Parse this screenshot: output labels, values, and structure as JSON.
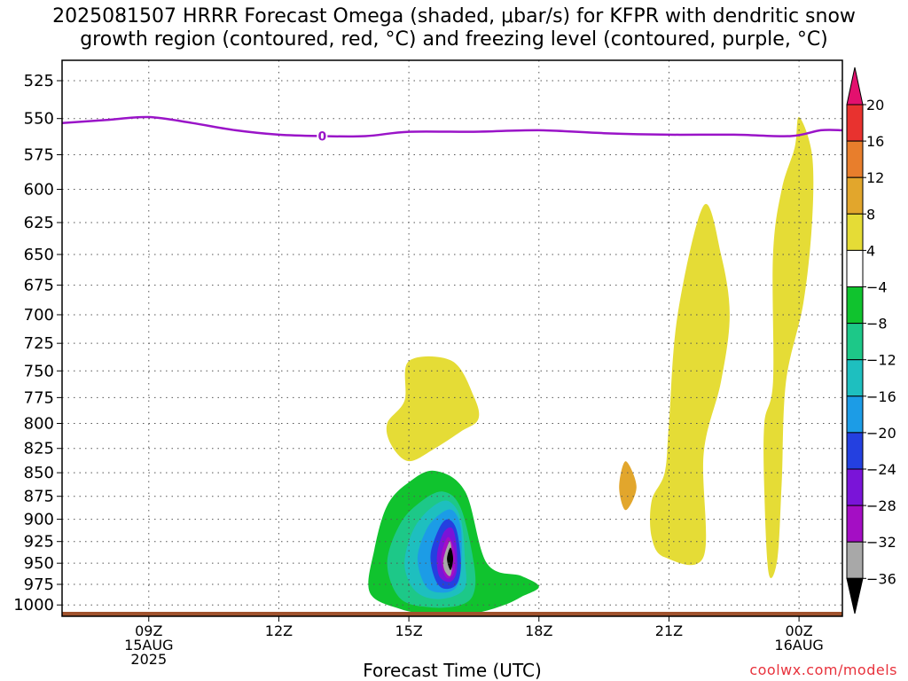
{
  "title": {
    "line1": "2025081507 HRRR Forecast Omega (shaded, μbar/s) for KFPR with dendritic snow",
    "line2": "growth region (contoured, red, °C) and freezing level (contoured, purple, °C)"
  },
  "credit": "coolwx.com/models",
  "chart_data": {
    "type": "contour",
    "xlabel": "Forecast Time (UTC)",
    "ylabel": "",
    "x_ticks": [
      {
        "hour": 9,
        "lines": [
          "09Z",
          "15AUG",
          "2025"
        ]
      },
      {
        "hour": 12,
        "lines": [
          "12Z"
        ]
      },
      {
        "hour": 15,
        "lines": [
          "15Z"
        ]
      },
      {
        "hour": 18,
        "lines": [
          "18Z"
        ]
      },
      {
        "hour": 21,
        "lines": [
          "21Z"
        ]
      },
      {
        "hour": 24,
        "lines": [
          "00Z",
          "16AUG"
        ]
      }
    ],
    "xlim_hours": [
      7,
      25
    ],
    "y_ticks": [
      525,
      550,
      575,
      600,
      625,
      650,
      675,
      700,
      725,
      750,
      775,
      800,
      825,
      850,
      875,
      900,
      925,
      950,
      975,
      1000
    ],
    "ylim_hPa": [
      512,
      1014
    ],
    "y_scale": "log-pressure",
    "grid": true,
    "colorbar": {
      "labels": [
        "20",
        "16",
        "12",
        "8",
        "4",
        "−4",
        "−8",
        "−12",
        "−16",
        "−20",
        "−24",
        "−28",
        "−32",
        "−36"
      ],
      "colors": [
        "#e3106e",
        "#e8322f",
        "#e87e2c",
        "#e2a62c",
        "#e5dc36",
        "#ffffff",
        "#10c32e",
        "#1dc888",
        "#1ebfbf",
        "#1c9ce6",
        "#2440e0",
        "#7a14d8",
        "#a40ec4",
        "#a8a8a8",
        "#000000"
      ]
    },
    "freezing_level": {
      "label": "0",
      "color": "#9a14c8",
      "points": [
        [
          7.0,
          553
        ],
        [
          8.0,
          551
        ],
        [
          9.0,
          549
        ],
        [
          10.0,
          553
        ],
        [
          11.0,
          558
        ],
        [
          12.0,
          561
        ],
        [
          13.0,
          562
        ],
        [
          14.0,
          562
        ],
        [
          15.0,
          559
        ],
        [
          16.5,
          559
        ],
        [
          18.0,
          558
        ],
        [
          19.5,
          560
        ],
        [
          21.0,
          561
        ],
        [
          22.5,
          561
        ],
        [
          23.8,
          562
        ],
        [
          24.5,
          558
        ],
        [
          25.0,
          558
        ]
      ]
    },
    "omega_areas": [
      {
        "value_range": "4 to 8",
        "color": "#e5dc36",
        "points": [
          [
            14.9,
            778
          ],
          [
            15.0,
            741
          ],
          [
            16.0,
            741
          ],
          [
            16.5,
            774
          ],
          [
            16.6,
            796
          ],
          [
            16.2,
            808
          ],
          [
            15.6,
            825
          ],
          [
            15.0,
            838
          ],
          [
            14.6,
            822
          ],
          [
            14.5,
            800
          ]
        ]
      },
      {
        "value_range": "4 to 8",
        "color": "#e5dc36",
        "points": [
          [
            20.9,
            850
          ],
          [
            21.0,
            800
          ],
          [
            21.2,
            700
          ],
          [
            21.8,
            612
          ],
          [
            22.2,
            650
          ],
          [
            22.4,
            700
          ],
          [
            22.2,
            760
          ],
          [
            21.8,
            830
          ],
          [
            21.8,
            942
          ],
          [
            20.9,
            943
          ],
          [
            20.6,
            920
          ],
          [
            20.6,
            880
          ]
        ]
      },
      {
        "value_range": "8 to 12",
        "color": "#e2a62c",
        "points": [
          [
            20.0,
            838
          ],
          [
            20.25,
            865
          ],
          [
            20.0,
            890
          ],
          [
            19.85,
            865
          ]
        ]
      },
      {
        "value_range": "4 to 8",
        "color": "#e5dc36",
        "points": [
          [
            23.4,
            760
          ],
          [
            23.4,
            650
          ],
          [
            23.6,
            600
          ],
          [
            23.9,
            570
          ],
          [
            24.0,
            549
          ],
          [
            24.3,
            575
          ],
          [
            24.3,
            625
          ],
          [
            24.1,
            690
          ],
          [
            23.7,
            760
          ],
          [
            23.6,
            860
          ],
          [
            23.5,
            945
          ],
          [
            23.3,
            962
          ],
          [
            23.2,
            870
          ],
          [
            23.2,
            800
          ]
        ]
      },
      {
        "value_range": "-8 to -4",
        "color": "#10c32e",
        "points": [
          [
            14.2,
            935
          ],
          [
            14.5,
            885
          ],
          [
            15.0,
            860
          ],
          [
            15.6,
            848
          ],
          [
            16.3,
            870
          ],
          [
            16.8,
            950
          ],
          [
            17.6,
            965
          ],
          [
            18.0,
            978
          ],
          [
            17.6,
            990
          ],
          [
            17.2,
            1000
          ],
          [
            16.5,
            1010
          ],
          [
            15.5,
            1011
          ],
          [
            14.8,
            1005
          ],
          [
            14.1,
            985
          ]
        ]
      },
      {
        "value_range": "-12 to -8",
        "color": "#1dc888",
        "points": [
          [
            14.5,
            950
          ],
          [
            14.8,
            905
          ],
          [
            15.3,
            880
          ],
          [
            15.8,
            870
          ],
          [
            16.2,
            888
          ],
          [
            16.5,
            950
          ],
          [
            16.5,
            985
          ],
          [
            16.2,
            1000
          ],
          [
            15.5,
            1003
          ],
          [
            14.8,
            992
          ]
        ]
      },
      {
        "value_range": "-16 to -12",
        "color": "#1ebfbf",
        "points": [
          [
            14.9,
            950
          ],
          [
            15.1,
            912
          ],
          [
            15.5,
            888
          ],
          [
            15.9,
            880
          ],
          [
            16.2,
            900
          ],
          [
            16.3,
            950
          ],
          [
            16.3,
            978
          ],
          [
            16.0,
            990
          ],
          [
            15.5,
            992
          ],
          [
            15.1,
            980
          ]
        ]
      },
      {
        "value_range": "-20 to -16",
        "color": "#1c9ce6",
        "points": [
          [
            15.2,
            945
          ],
          [
            15.4,
            912
          ],
          [
            15.7,
            895
          ],
          [
            16.0,
            890
          ],
          [
            16.2,
            910
          ],
          [
            16.2,
            955
          ],
          [
            16.1,
            978
          ],
          [
            15.8,
            985
          ],
          [
            15.4,
            978
          ]
        ]
      },
      {
        "value_range": "-24 to -20",
        "color": "#2440e0",
        "points": [
          [
            15.5,
            940
          ],
          [
            15.7,
            910
          ],
          [
            15.9,
            900
          ],
          [
            16.1,
            912
          ],
          [
            16.2,
            950
          ],
          [
            16.1,
            975
          ],
          [
            15.8,
            980
          ],
          [
            15.6,
            968
          ]
        ]
      },
      {
        "value_range": "-28 to -24",
        "color": "#7a14d8",
        "points": [
          [
            15.65,
            940
          ],
          [
            15.8,
            915
          ],
          [
            16.0,
            910
          ],
          [
            16.1,
            930
          ],
          [
            16.1,
            960
          ],
          [
            15.95,
            972
          ],
          [
            15.7,
            965
          ]
        ]
      },
      {
        "value_range": "-32 to -28",
        "color": "#a40ec4",
        "points": [
          [
            15.75,
            940
          ],
          [
            15.9,
            920
          ],
          [
            16.05,
            935
          ],
          [
            16.05,
            960
          ],
          [
            15.9,
            968
          ],
          [
            15.78,
            958
          ]
        ]
      },
      {
        "value_range": "-36 to -32",
        "color": "#a8a8a8",
        "points": [
          [
            15.8,
            945
          ],
          [
            15.95,
            925
          ],
          [
            16.0,
            950
          ],
          [
            15.95,
            965
          ],
          [
            15.82,
            958
          ]
        ]
      },
      {
        "value_range": "below -36",
        "color": "#000000",
        "points": [
          [
            15.88,
            945
          ],
          [
            15.96,
            932
          ],
          [
            16.02,
            945
          ],
          [
            15.96,
            958
          ]
        ]
      }
    ],
    "terrain": {
      "color": "#a0522d",
      "pressure_hPa": 1014
    }
  }
}
